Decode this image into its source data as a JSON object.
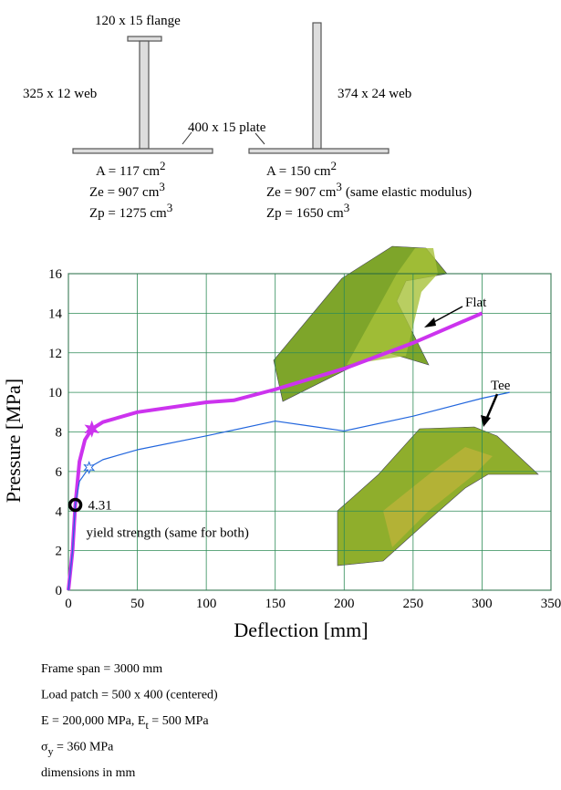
{
  "diagram": {
    "flange": "120 x 15 flange",
    "web_left": "325 x 12 web",
    "plate": "400 x 15 plate",
    "web_right": "374 x 24 web",
    "left_props": [
      {
        "main": "A = 117 cm",
        "sup": "2"
      },
      {
        "main": "Ze = 907 cm",
        "sup": "3"
      },
      {
        "main": "Zp = 1275 cm",
        "sup": "3"
      }
    ],
    "right_props": [
      {
        "main": "A = 150 cm",
        "sup": "2"
      },
      {
        "main": "Ze = 907 cm",
        "sup": "3",
        "tail": "(same elastic modulus)"
      },
      {
        "main": "Zp = 1650 cm",
        "sup": "3"
      }
    ]
  },
  "chart_data": {
    "type": "line",
    "x_label": "Deflection [mm]",
    "y_label": "Pressure [MPa]",
    "xlim": [
      0,
      350
    ],
    "ylim": [
      0,
      16
    ],
    "xticks": [
      0,
      50,
      100,
      150,
      200,
      250,
      300,
      350
    ],
    "yticks": [
      0,
      2,
      4,
      6,
      8,
      10,
      12,
      14,
      16
    ],
    "grid": true,
    "series": [
      {
        "name": "Flat",
        "color": "#cc33ee",
        "width": 4,
        "x": [
          0,
          3,
          5,
          8,
          12,
          17,
          25,
          50,
          100,
          120,
          150,
          200,
          250,
          300
        ],
        "values": [
          0,
          2,
          4.31,
          6.5,
          7.6,
          8.15,
          8.5,
          9.0,
          9.5,
          9.6,
          10.15,
          11.2,
          12.5,
          14.0
        ],
        "star": {
          "x": 17,
          "y": 8.15
        }
      },
      {
        "name": "Tee",
        "color": "#2266dd",
        "width": 1.2,
        "x": [
          0,
          3,
          5,
          8,
          15,
          25,
          50,
          100,
          150,
          175,
          200,
          250,
          300,
          320
        ],
        "values": [
          0,
          2,
          4.31,
          5.5,
          6.2,
          6.6,
          7.1,
          7.8,
          8.55,
          8.3,
          8.05,
          8.8,
          9.7,
          10.0
        ],
        "star": {
          "x": 15,
          "y": 6.2
        }
      }
    ],
    "yield": {
      "x": 5,
      "y": 4.31,
      "label": "4.31",
      "text": "yield strength (same for both)"
    }
  },
  "notes": [
    {
      "main": "Frame span = 3000 mm"
    },
    {
      "main": "Load patch = 500 x 400 (centered)"
    },
    {
      "main": "E = 200,000 MPa,   E",
      "sub": "t",
      "tail": " = 500 MPa"
    },
    {
      "main": "σ",
      "sub": "y",
      "tail": " = 360 MPa"
    },
    {
      "main": "dimensions in mm"
    }
  ]
}
